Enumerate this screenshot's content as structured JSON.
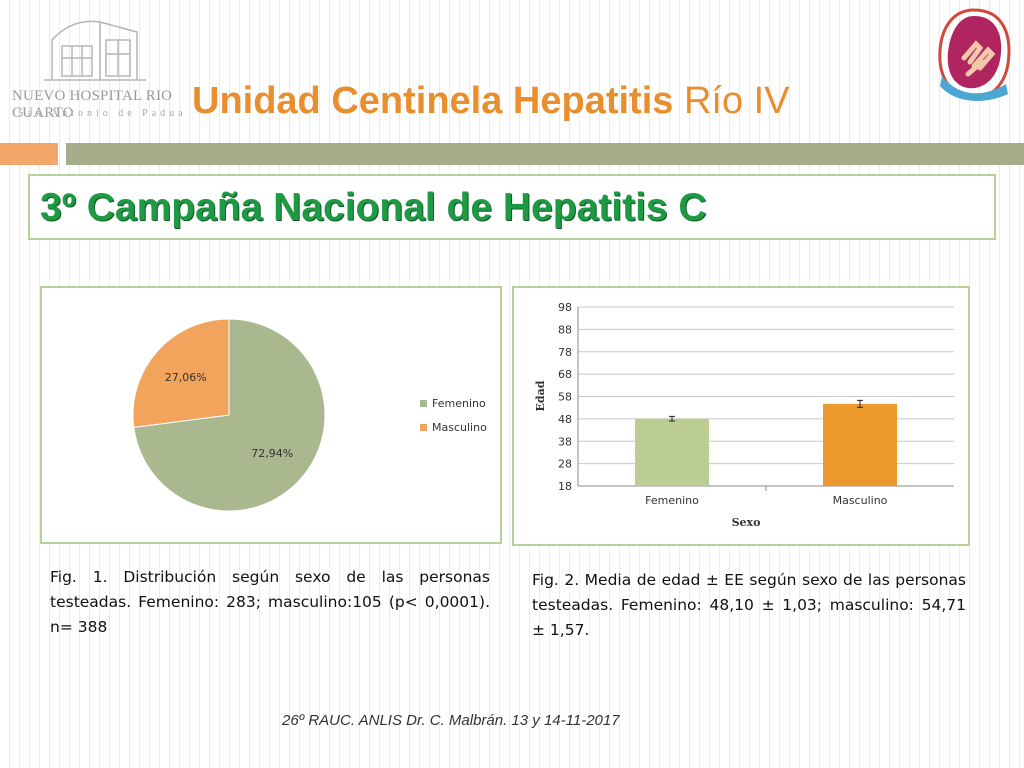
{
  "header": {
    "hospital_name": "NUEVO HOSPITAL RIO CUARTO",
    "hospital_subtitle": "San Antonio de Padua",
    "title_bold": "Unidad Centinela Hepatitis",
    "title_light": "Río IV",
    "accent_orange": "#e98e2e",
    "bar_gray": "#a6ad8b"
  },
  "subtitle": {
    "text": "3º Campaña Nacional de Hepatitis C",
    "color": "#1e9a44"
  },
  "chart_data": [
    {
      "type": "pie",
      "title": "",
      "categories": [
        "Femenino",
        "Masculino"
      ],
      "values": [
        72.94,
        27.06
      ],
      "labels": [
        "72,94%",
        "27,06%"
      ],
      "colors": [
        "#a9b88e",
        "#f2a45c"
      ],
      "legend": "right"
    },
    {
      "type": "bar",
      "title": "",
      "xlabel": "Sexo",
      "ylabel": "Edad",
      "categories": [
        "Femenino",
        "Masculino"
      ],
      "values": [
        48.1,
        54.71
      ],
      "errors": [
        1.03,
        1.57
      ],
      "colors": [
        "#bccd93",
        "#ec9a2e"
      ],
      "ylim": [
        18,
        98
      ],
      "yticks": [
        "18",
        "28",
        "38",
        "48",
        "58",
        "68",
        "78",
        "88",
        "98"
      ],
      "grid": true
    }
  ],
  "captions": {
    "fig1": "Fig. 1. Distribución según sexo de las personas testeadas. Femenino: 283; masculino:105 (p< 0,0001). n= 388",
    "fig2": "Fig. 2. Media de edad ± EE según sexo de las personas testeadas. Femenino: 48,10 ± 1,03; masculino: 54,71 ± 1,57."
  },
  "footer": "26º RAUC. ANLIS Dr. C. Malbrán. 13 y 14-11-2017"
}
